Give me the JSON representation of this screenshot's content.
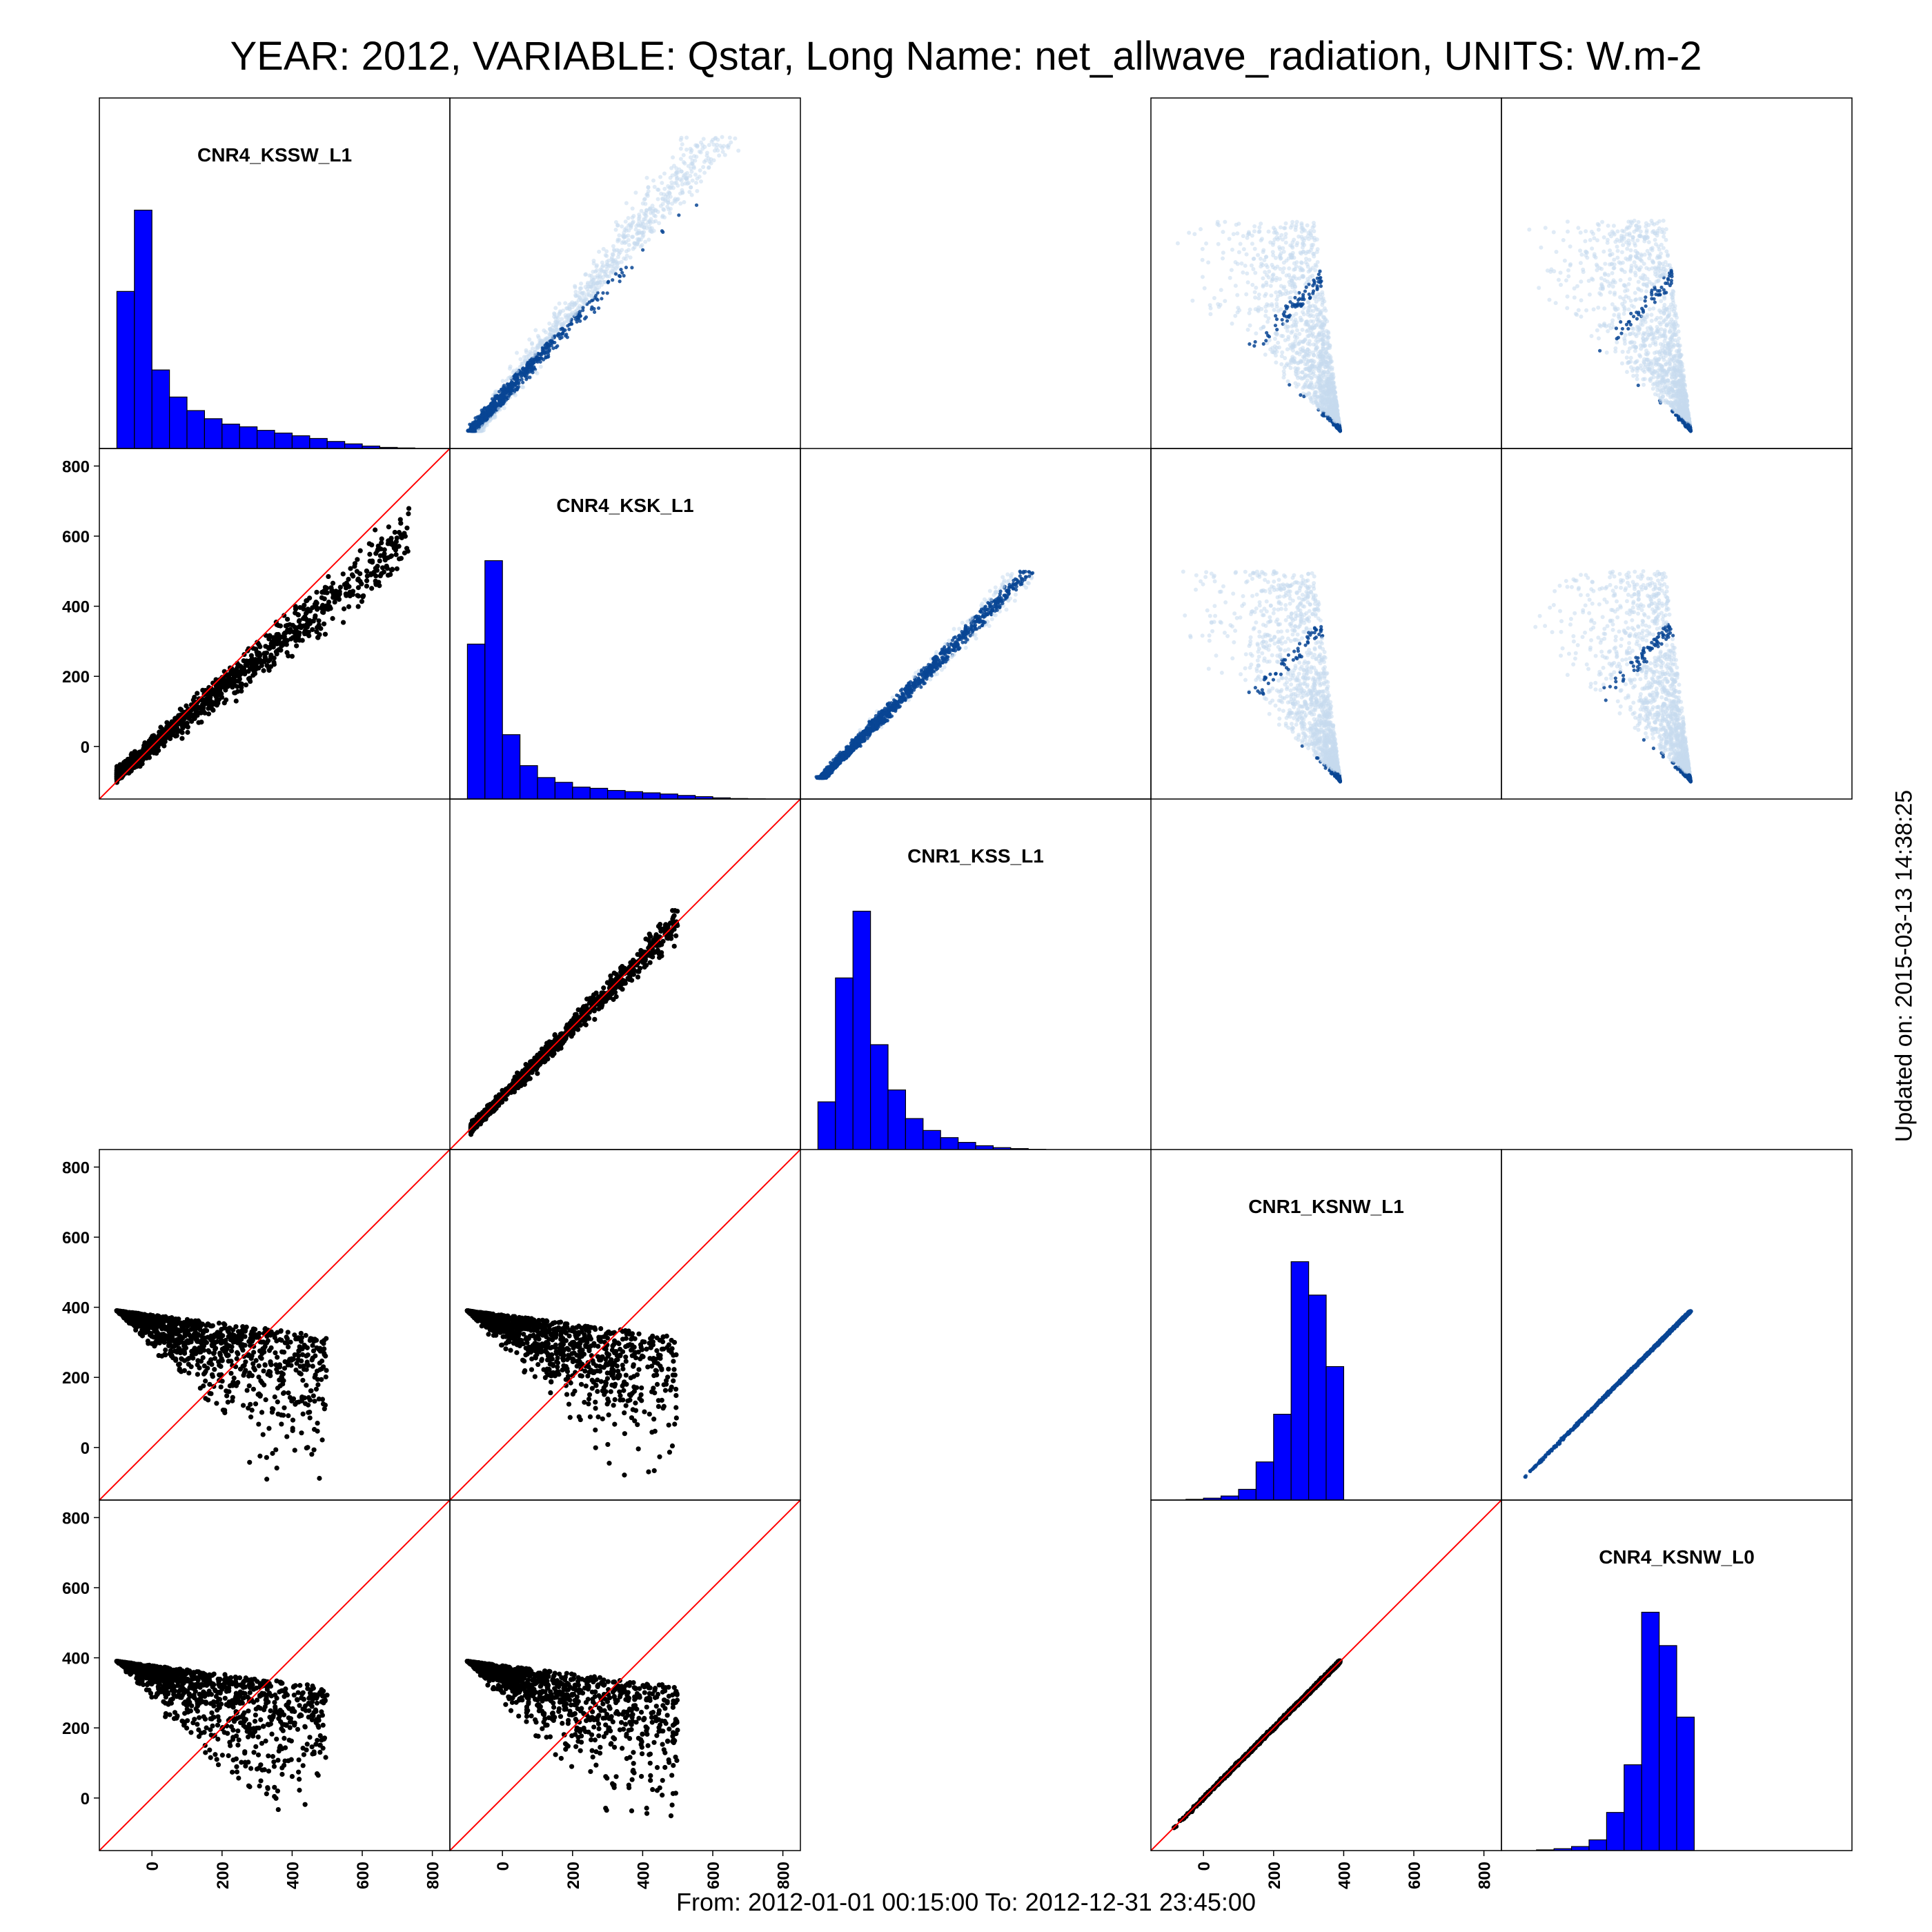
{
  "title": "YEAR: 2012, VARIABLE: Qstar, Long Name: net_allwave_radiation, UNITS: W.m-2",
  "footer": "From: 2012-01-01 00:15:00 To: 2012-12-31 23:45:00",
  "updated": "Updated on: 2015-03-13 14:38:25",
  "colors": {
    "histogram_fill": "#0000ff",
    "histogram_edge": "#000000",
    "scatter_points": "#000000",
    "identity_line": "#ff0000",
    "density_light": "#c6dbef",
    "density_dark": "#084594",
    "frame": "#000000"
  },
  "chart_data": {
    "type": "scatter",
    "layout": "scatter-matrix",
    "grid": false,
    "variables": [
      "CNR4_KSSW_L1",
      "CNR4_KSK_L1",
      "CNR1_KSS_L1",
      "CNR1_KSNW_L1",
      "CNR4_KSNW_L0"
    ],
    "axis_ticks": [
      0,
      200,
      400,
      600,
      800
    ],
    "axis_range": [
      -150,
      850
    ],
    "diagonal": "histogram",
    "upper_triangle": "density scatter",
    "lower_triangle": "scatter with 1:1 line",
    "histograms": [
      {
        "variable": "CNR4_KSSW_L1",
        "bin_edges": [
          -100,
          -50,
          0,
          50,
          100,
          150,
          200,
          250,
          300,
          350,
          400,
          450,
          500,
          550,
          600,
          650,
          700,
          750
        ],
        "counts": [
          0.58,
          0.88,
          0.29,
          0.19,
          0.14,
          0.11,
          0.09,
          0.08,
          0.067,
          0.057,
          0.047,
          0.037,
          0.026,
          0.017,
          0.009,
          0.004,
          0.002
        ]
      },
      {
        "variable": "CNR4_KSK_L1",
        "bin_edges": [
          -100,
          -50,
          0,
          50,
          100,
          150,
          200,
          250,
          300,
          350,
          400,
          450,
          500,
          550,
          600,
          650,
          700,
          750
        ],
        "counts": [
          0.65,
          1.0,
          0.27,
          0.14,
          0.09,
          0.07,
          0.05,
          0.045,
          0.036,
          0.031,
          0.026,
          0.021,
          0.015,
          0.01,
          0.005,
          0.002,
          0.001
        ]
      },
      {
        "variable": "CNR1_KSS_L1",
        "bin_edges": [
          -100,
          -50,
          0,
          50,
          100,
          150,
          200,
          250,
          300,
          350,
          400,
          450,
          500,
          550
        ],
        "counts": [
          0.2,
          0.72,
          1.0,
          0.44,
          0.25,
          0.13,
          0.08,
          0.05,
          0.03,
          0.016,
          0.008,
          0.004,
          0.001
        ]
      },
      {
        "variable": "CNR1_KSNW_L1",
        "bin_edges": [
          -100,
          -50,
          0,
          50,
          100,
          150,
          200,
          250,
          300,
          350,
          400
        ],
        "counts": [
          0.0,
          0.003,
          0.008,
          0.017,
          0.045,
          0.16,
          0.36,
          1.0,
          0.86,
          0.56
        ]
      },
      {
        "variable": "CNR4_KSNW_L0",
        "bin_edges": [
          -100,
          -50,
          0,
          50,
          100,
          150,
          200,
          250,
          300,
          350,
          400
        ],
        "counts": [
          0.0,
          0.003,
          0.008,
          0.017,
          0.045,
          0.16,
          0.36,
          1.0,
          0.86,
          0.56
        ]
      }
    ],
    "pairs": [
      {
        "x": "CNR4_KSSW_L1",
        "y": "CNR4_KSK_L1",
        "relation": "approximately linear, y ≈ 0.8·x, x range -100 to 780"
      },
      {
        "x": "CNR4_KSK_L1",
        "y": "CNR1_KSS_L1",
        "relation": "approximately linear, y ≈ 1.0·x, x range -90 to 500"
      },
      {
        "x": "CNR4_KSSW_L1",
        "y": "CNR1_KSNW_L1",
        "relation": "negative wedge, y from 390 at x=-100 to -110 at x=300, x range -100 to 500"
      },
      {
        "x": "CNR4_KSK_L1",
        "y": "CNR1_KSNW_L1",
        "relation": "negative wedge, y from 390 at x=-100 to -110 at x=360, x range -100 to 500"
      },
      {
        "x": "CNR4_KSSW_L1",
        "y": "CNR4_KSNW_L0",
        "relation": "negative wedge, y from 390 at x=-100 to -110 at x=300, x range -100 to 500"
      },
      {
        "x": "CNR4_KSK_L1",
        "y": "CNR4_KSNW_L0",
        "relation": "negative wedge, y from 390 at x=-100 to -110 at x=360, x range -100 to 500"
      },
      {
        "x": "CNR1_KSNW_L1",
        "y": "CNR4_KSNW_L0",
        "relation": "y = x, x range -110 to 390"
      }
    ]
  }
}
